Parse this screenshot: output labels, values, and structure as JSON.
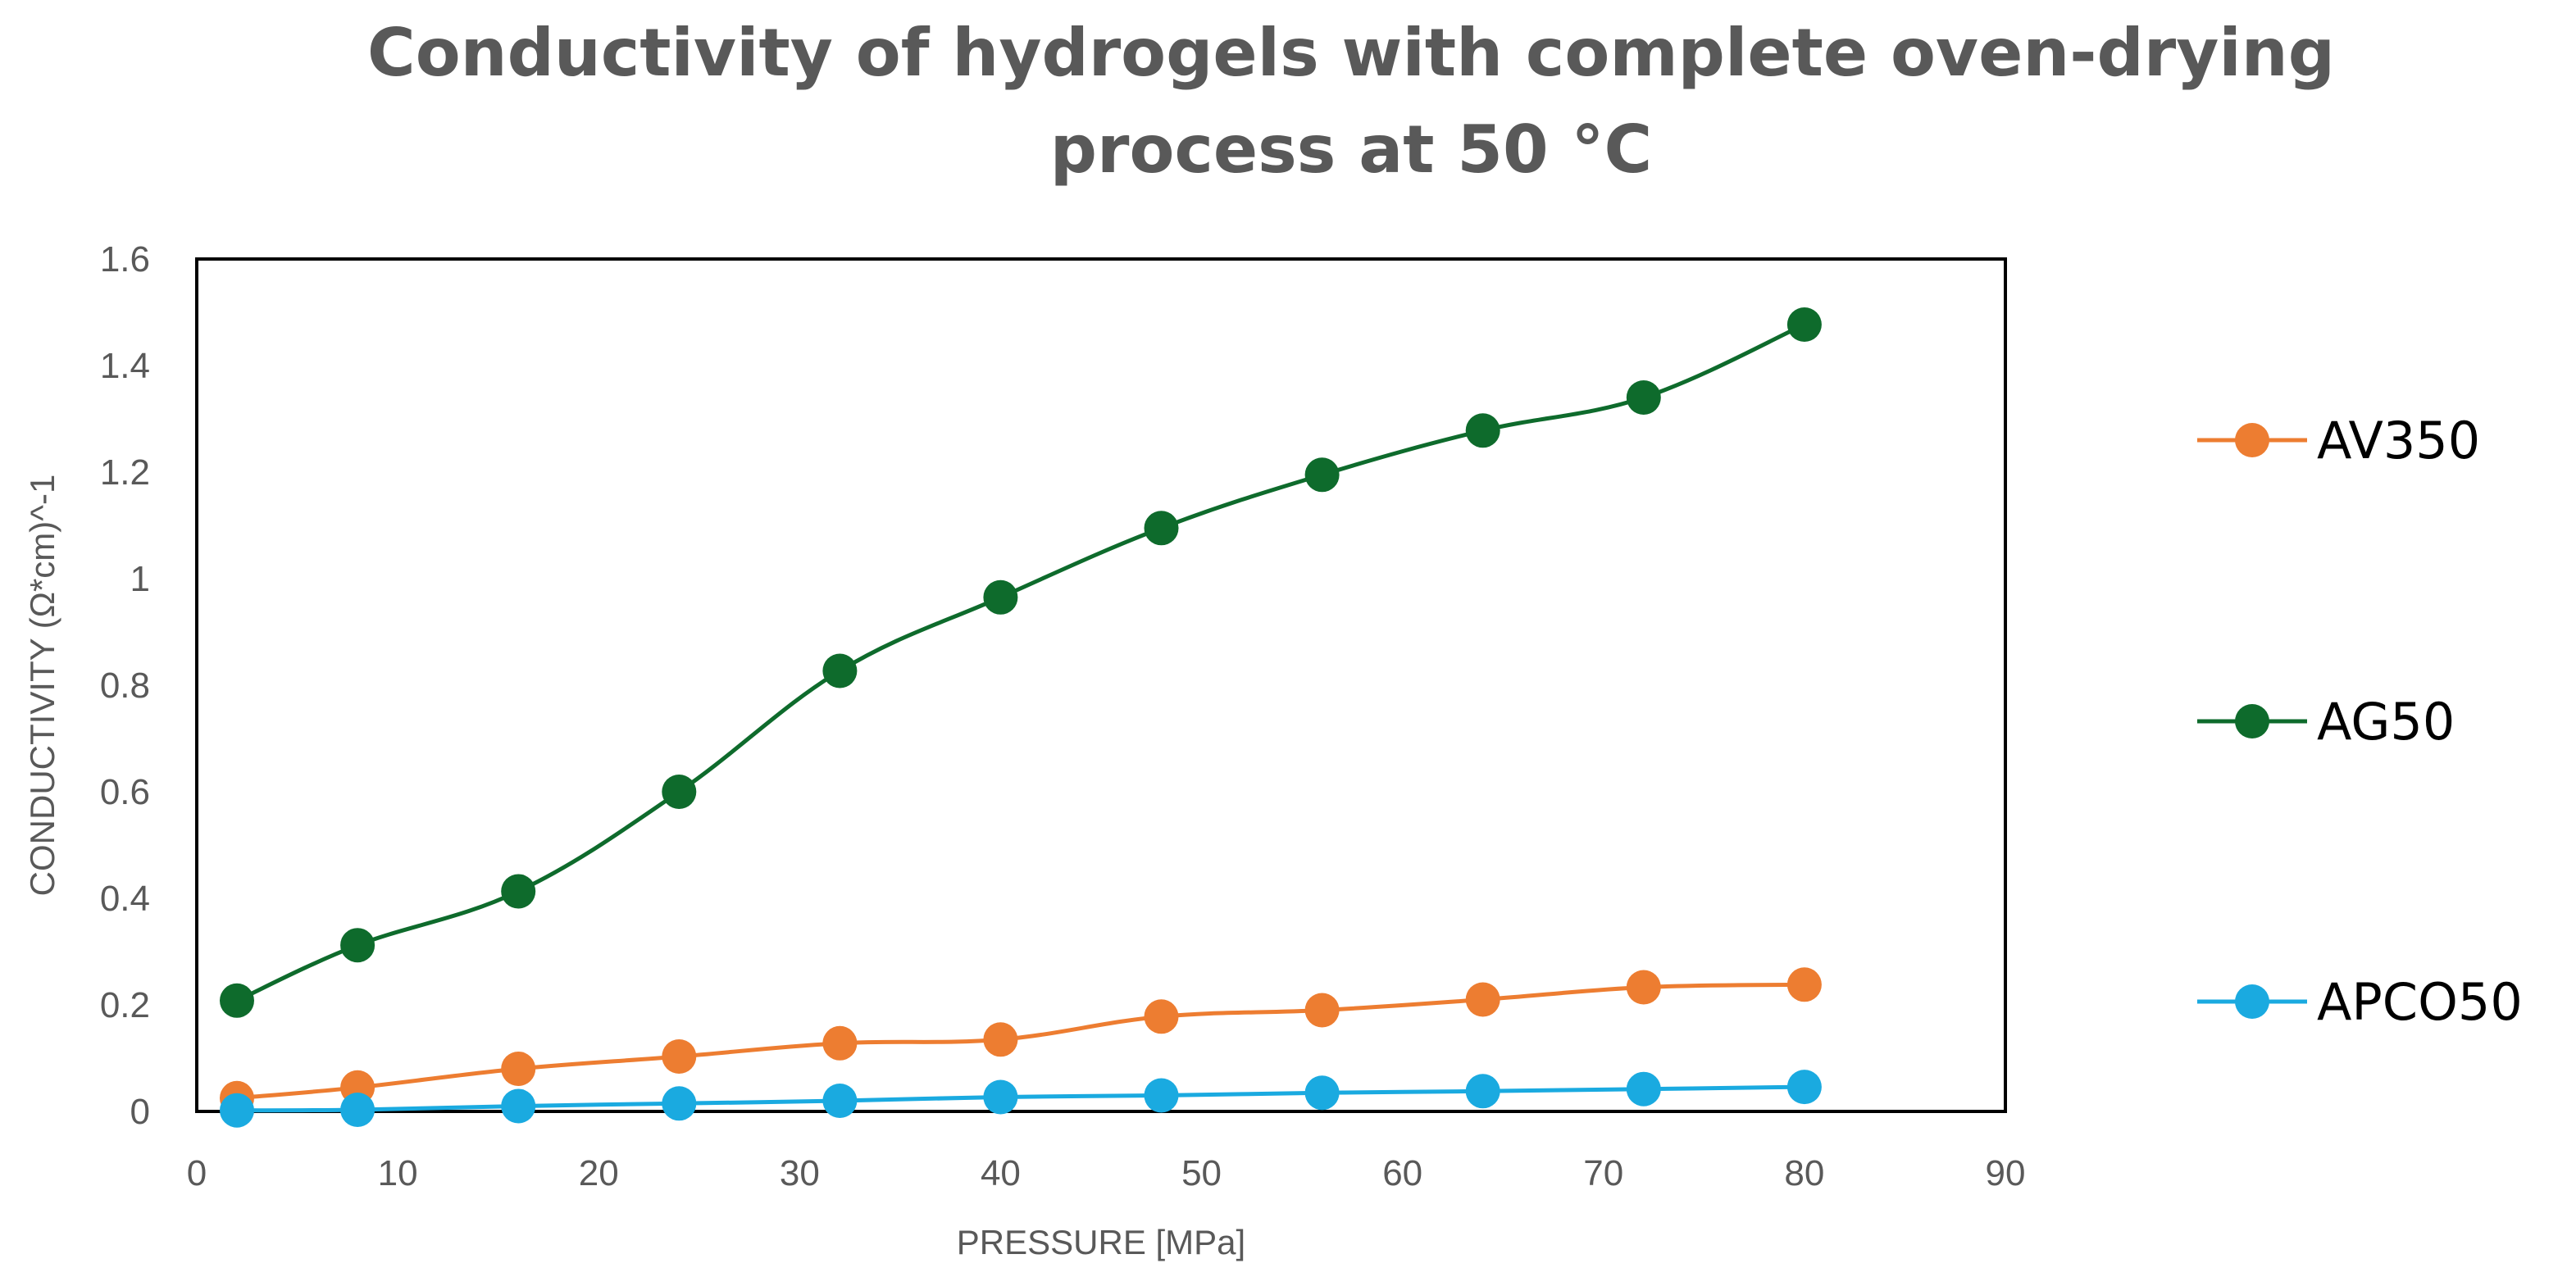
{
  "chart_data": {
    "type": "line",
    "title_lines": [
      "Conductivity of hydrogels with complete oven-drying",
      "process at 50 °C"
    ],
    "xlabel": "PRESSURE [MPa]",
    "ylabel": "CONDUCTIVITY (Ω*cm)^-1",
    "xlim": [
      0,
      90
    ],
    "ylim": [
      0,
      1.6
    ],
    "x_ticks": [
      0,
      10,
      20,
      30,
      40,
      50,
      60,
      70,
      80,
      90
    ],
    "x_tick_labels": [
      "0",
      "10",
      "20",
      "30",
      "40",
      "50",
      "60",
      "70",
      "80",
      "90"
    ],
    "y_ticks": [
      0,
      0.2,
      0.4,
      0.6,
      0.8,
      1.0,
      1.2,
      1.4,
      1.6
    ],
    "y_tick_labels": [
      "0",
      "0.2",
      "0.4",
      "0.6",
      "0.8",
      "1",
      "1.2",
      "1.4",
      "1.6"
    ],
    "grid": false,
    "legend_position": "right",
    "x": [
      2,
      8,
      16,
      24,
      32,
      40,
      48,
      56,
      64,
      72,
      80
    ],
    "series": [
      {
        "name": "AV350",
        "color": "#ED7D31",
        "values": [
          0.025,
          0.045,
          0.08,
          0.103,
          0.128,
          0.135,
          0.178,
          0.19,
          0.21,
          0.233,
          0.238
        ]
      },
      {
        "name": "AG50",
        "color": "#0E6B2C",
        "values": [
          0.208,
          0.312,
          0.413,
          0.6,
          0.827,
          0.965,
          1.095,
          1.195,
          1.278,
          1.34,
          1.477
        ]
      },
      {
        "name": "APCO50",
        "color": "#1AAAE0",
        "values": [
          0.002,
          0.003,
          0.01,
          0.015,
          0.02,
          0.027,
          0.03,
          0.035,
          0.038,
          0.042,
          0.046
        ]
      }
    ]
  }
}
